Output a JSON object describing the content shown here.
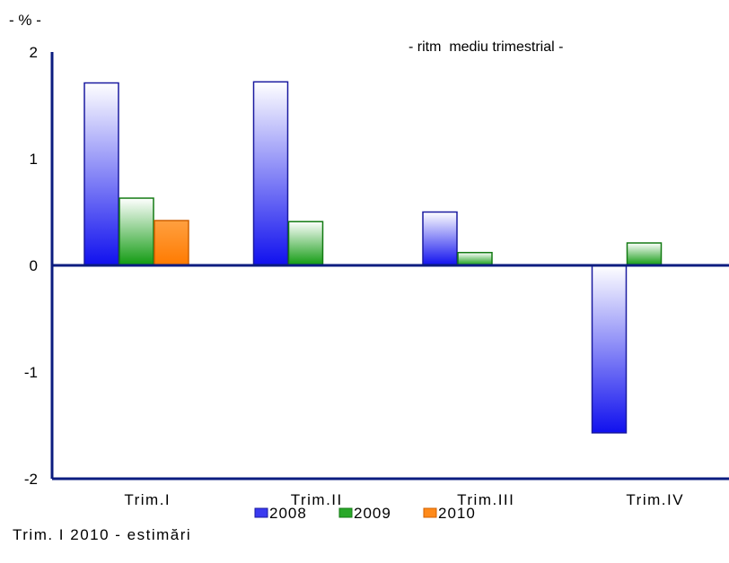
{
  "chart_data": {
    "type": "bar",
    "unit_label": "- % -",
    "subtitle": "- ritm  mediu trimestrial -",
    "categories": [
      "Trim.I",
      "Trim.II",
      "Trim.III",
      "Trim.IV"
    ],
    "series": [
      {
        "name": "2008",
        "values": [
          1.71,
          1.72,
          0.5,
          -1.57
        ],
        "color": "#2020e0"
      },
      {
        "name": "2009",
        "values": [
          0.63,
          0.41,
          0.12,
          0.21
        ],
        "color": "#1e9a1e"
      },
      {
        "name": "2010",
        "values": [
          0.42,
          null,
          null,
          null
        ],
        "color": "#ff8000"
      }
    ],
    "ylim": [
      -2,
      2
    ],
    "yticks": [
      2,
      1,
      0,
      -1,
      -2
    ],
    "grid": false,
    "legend": "bottom"
  },
  "footnote": "Trim. I 2010 - estimări"
}
